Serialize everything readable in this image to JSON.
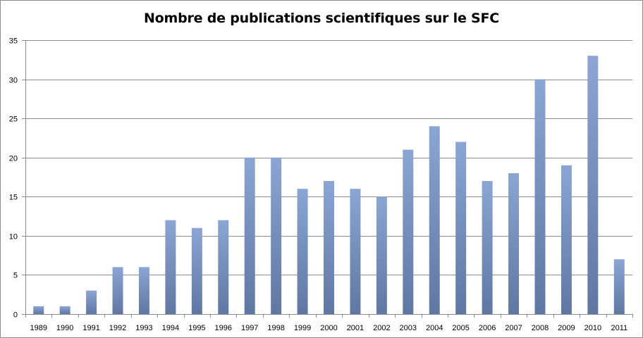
{
  "chart_data": {
    "type": "bar",
    "title": "Nombre de publications scientifiques sur le SFC",
    "xlabel": "",
    "ylabel": "",
    "categories": [
      "1989",
      "1990",
      "1991",
      "1992",
      "1993",
      "1994",
      "1995",
      "1996",
      "1997",
      "1998",
      "1999",
      "2000",
      "2001",
      "2002",
      "2003",
      "2004",
      "2005",
      "2006",
      "2007",
      "2008",
      "2009",
      "2010",
      "2011"
    ],
    "values": [
      1,
      1,
      3,
      6,
      6,
      12,
      11,
      12,
      20,
      20,
      16,
      17,
      16,
      15,
      21,
      24,
      22,
      17,
      18,
      30,
      19,
      33,
      7
    ],
    "ylim": [
      0,
      35
    ],
    "yticks": [
      0,
      5,
      10,
      15,
      20,
      25,
      30,
      35
    ],
    "grid": true,
    "legend": "none",
    "colors": {
      "bar_top": "#8aa6d4",
      "bar_bottom": "#5f77a3",
      "grid": "#8c8c8c",
      "axis": "#8c8c8c"
    }
  }
}
